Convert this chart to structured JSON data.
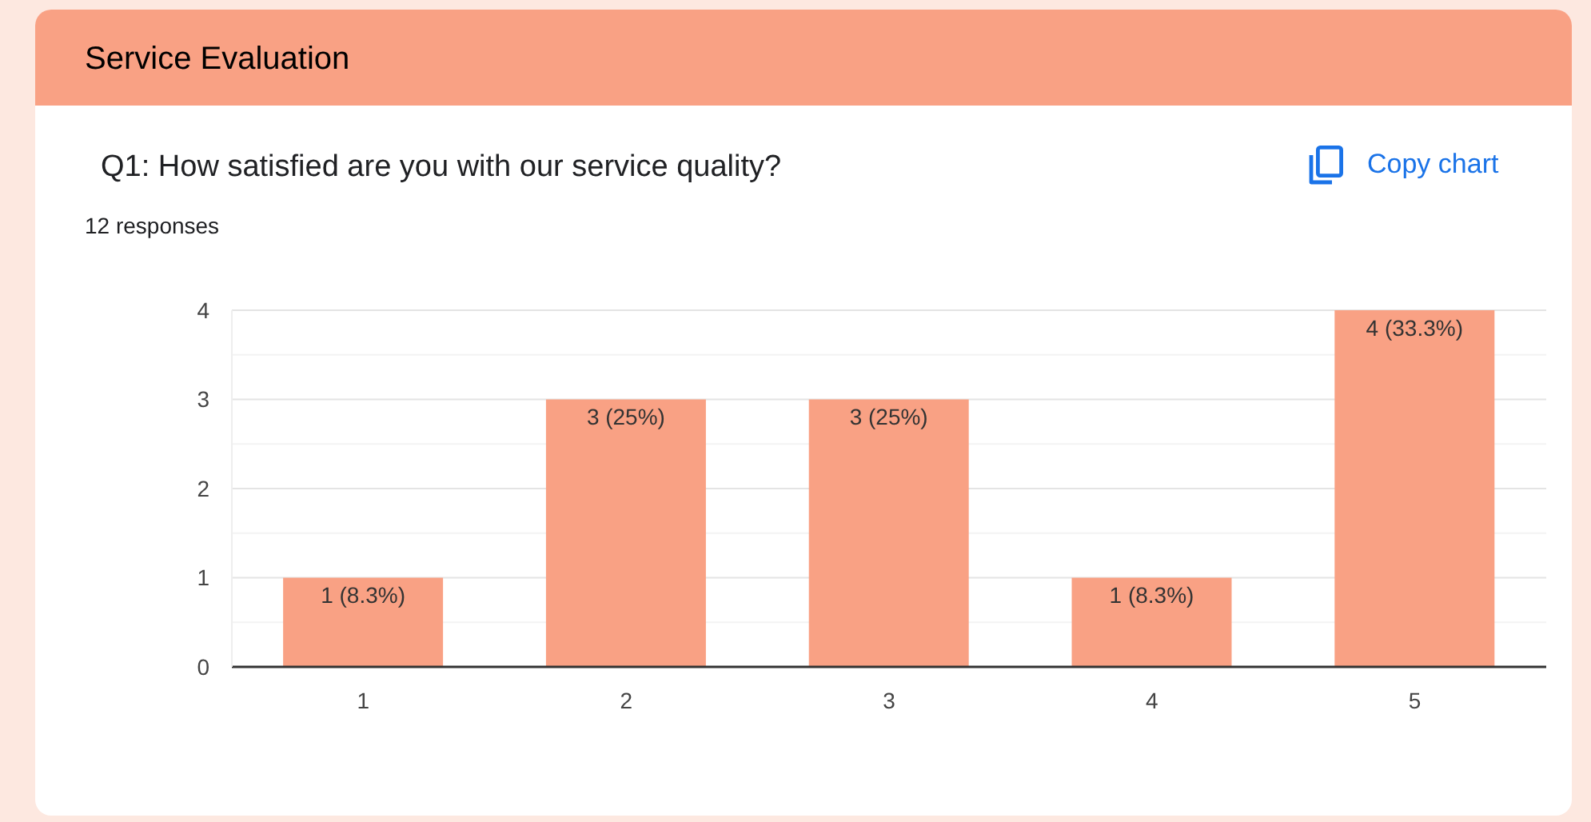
{
  "chart_data": {
    "type": "bar",
    "title": "Service Evaluation",
    "subtitle": "Q1: How satisfied are you with our service quality?",
    "annotations": [
      "12 responses",
      "Copy chart"
    ],
    "categories": [
      "1",
      "2",
      "3",
      "4",
      "5"
    ],
    "values": [
      1,
      3,
      3,
      1,
      4
    ],
    "value_labels": [
      "1 (8.3%)",
      "3 (25%)",
      "3 (25%)",
      "1 (8.3%)",
      "4 (33.3%)"
    ],
    "color": "#f9a184",
    "ylim": [
      0,
      4
    ],
    "yticks": [
      0,
      {
        "value": 0.5,
        "label": null
      },
      1,
      {
        "value": 1.5,
        "label": null
      },
      2,
      {
        "value": 2.5,
        "label": null
      },
      3,
      {
        "value": 3.5,
        "label": null
      },
      4
    ],
    "grid": "y"
  }
}
